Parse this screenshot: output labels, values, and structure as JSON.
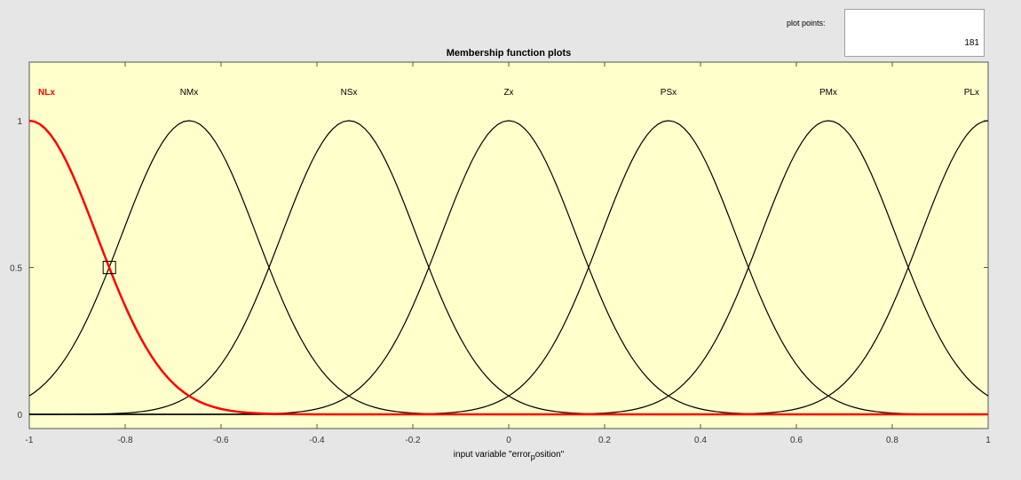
{
  "plot_points": {
    "label": "plot points:",
    "value": "181"
  },
  "chart_data": {
    "type": "line",
    "title": "Membership function plots",
    "xlabel_parts": [
      "input variable \"error",
      "p",
      "osition\""
    ],
    "xlim": [
      -1,
      1
    ],
    "ylim": [
      0,
      1
    ],
    "x_ticks": [
      -1,
      -0.8,
      -0.6,
      -0.4,
      -0.2,
      0,
      0.2,
      0.4,
      0.6,
      0.8,
      1
    ],
    "x_tick_labels": [
      "-1",
      "-0.8",
      "-0.6",
      "-0.4",
      "-0.2",
      "0",
      "0.2",
      "0.4",
      "0.6",
      "0.8",
      "1"
    ],
    "y_ticks": [
      0,
      0.5,
      1
    ],
    "y_tick_labels": [
      "0",
      "0.5",
      "1"
    ],
    "function": "gaussmf",
    "sigma": 0.1416,
    "selected_series": "NLx",
    "selected_color": "#ff0000",
    "line_color": "#000000",
    "background_color": "#ffffcc",
    "series": [
      {
        "name": "NLx",
        "center": -1
      },
      {
        "name": "NMx",
        "center": -0.6667
      },
      {
        "name": "NSx",
        "center": -0.3333
      },
      {
        "name": "Zx",
        "center": 0
      },
      {
        "name": "PSx",
        "center": 0.3333
      },
      {
        "name": "PMx",
        "center": 0.6667
      },
      {
        "name": "PLx",
        "center": 1
      }
    ],
    "selection_marker": {
      "x": -0.833,
      "y": 0.5
    }
  }
}
